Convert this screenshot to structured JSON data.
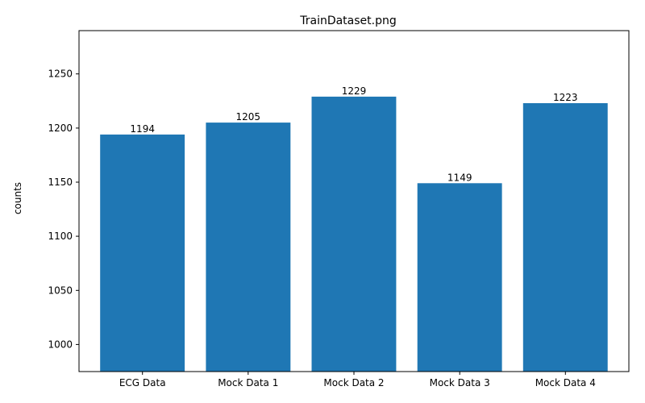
{
  "chart_data": {
    "type": "bar",
    "title": "TrainDataset.png",
    "xlabel": "",
    "ylabel": "counts",
    "categories": [
      "ECG Data",
      "Mock Data 1",
      "Mock Data 2",
      "Mock Data 3",
      "Mock Data 4"
    ],
    "values": [
      1194,
      1205,
      1229,
      1149,
      1223
    ],
    "ylim": [
      975,
      1290
    ],
    "yticks": [
      1000,
      1050,
      1100,
      1150,
      1200,
      1250
    ],
    "grid": false,
    "bar_color": "#1f77b4"
  }
}
